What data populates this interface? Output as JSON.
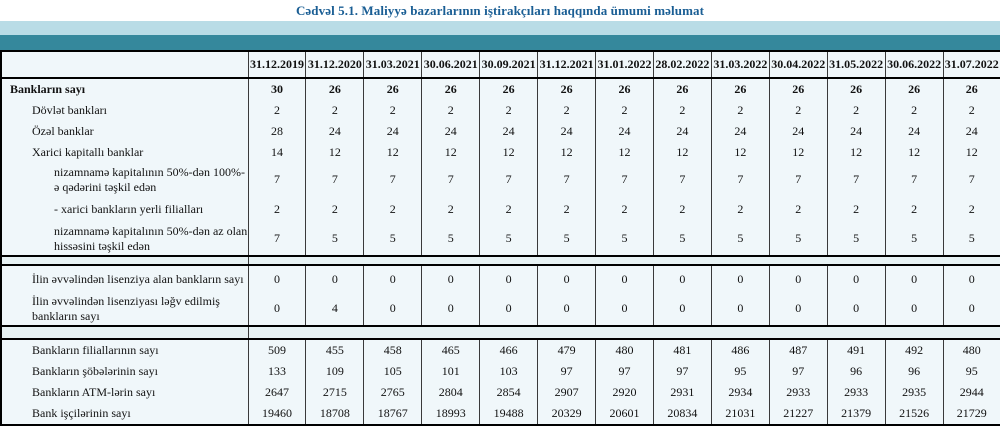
{
  "title": "Cədvəl 5.1. Maliyyə bazarlarının iştirakçıları haqqında ümumi məlumat",
  "colors": {
    "title_blue": "#1a5e94",
    "band_light": "#b9dce6",
    "band_dark": "#35889c",
    "cell_background": "#f0f7fa",
    "divider_background": "#e7f2f4"
  },
  "table": {
    "columns": [
      "31.12.2019",
      "31.12.2020",
      "31.03.2021",
      "30.06.2021",
      "30.09.2021",
      "31.12.2021",
      "31.01.2022",
      "28.02.2022",
      "31.03.2022",
      "30.04.2022",
      "31.05.2022",
      "30.06.2022",
      "31.07.2022"
    ],
    "sections": [
      {
        "rows": [
          {
            "label": "Bankların sayı",
            "indent": 0,
            "bold": true,
            "size": "s",
            "values": [
              "30",
              "26",
              "26",
              "26",
              "26",
              "26",
              "26",
              "26",
              "26",
              "26",
              "26",
              "26",
              "26"
            ]
          },
          {
            "label": "Dövlət bankları",
            "indent": 1,
            "bold": false,
            "size": "s",
            "values": [
              "2",
              "2",
              "2",
              "2",
              "2",
              "2",
              "2",
              "2",
              "2",
              "2",
              "2",
              "2",
              "2"
            ]
          },
          {
            "label": "Özəl banklar",
            "indent": 1,
            "bold": false,
            "size": "s",
            "values": [
              "28",
              "24",
              "24",
              "24",
              "24",
              "24",
              "24",
              "24",
              "24",
              "24",
              "24",
              "24",
              "24"
            ]
          },
          {
            "label": "Xarici kapitallı banklar",
            "indent": 1,
            "bold": false,
            "size": "s",
            "values": [
              "14",
              "12",
              "12",
              "12",
              "12",
              "12",
              "12",
              "12",
              "12",
              "12",
              "12",
              "12",
              "12"
            ]
          },
          {
            "label": "nizamnamə kapitalının 50%-dən 100%-ə qədərini təşkil edən",
            "indent": 2,
            "bold": false,
            "size": "d",
            "values": [
              "7",
              "7",
              "7",
              "7",
              "7",
              "7",
              "7",
              "7",
              "7",
              "7",
              "7",
              "7",
              "7"
            ]
          },
          {
            "label": "-  xarici bankların yerli filialları",
            "indent": 2,
            "bold": false,
            "size": "m",
            "values": [
              "2",
              "2",
              "2",
              "2",
              "2",
              "2",
              "2",
              "2",
              "2",
              "2",
              "2",
              "2",
              "2"
            ]
          },
          {
            "label": "nizamnamə kapitalının 50%-dən az olan hissəsini  təşkil edən",
            "indent": 2,
            "bold": false,
            "size": "d",
            "values": [
              "7",
              "5",
              "5",
              "5",
              "5",
              "5",
              "5",
              "5",
              "5",
              "5",
              "5",
              "5",
              "5"
            ]
          }
        ]
      },
      {
        "rows": [
          {
            "label": "İlin əvvəlindən lisenziya alan bankların sayı",
            "indent": 1,
            "bold": false,
            "size": "m",
            "values": [
              "0",
              "0",
              "0",
              "0",
              "0",
              "0",
              "0",
              "0",
              "0",
              "0",
              "0",
              "0",
              "0"
            ]
          },
          {
            "label": "İlin əvvəlindən lisenziyası ləğv edilmiş bankların sayı",
            "indent": 1,
            "bold": false,
            "size": "d",
            "values": [
              "0",
              "4",
              "0",
              "0",
              "0",
              "0",
              "0",
              "0",
              "0",
              "0",
              "0",
              "0",
              "0"
            ]
          }
        ]
      },
      {
        "rows": [
          {
            "label": "Bankların filiallarının sayı",
            "indent": 1,
            "bold": false,
            "size": "s",
            "values": [
              "509",
              "455",
              "458",
              "465",
              "466",
              "479",
              "480",
              "481",
              "486",
              "487",
              "491",
              "492",
              "480"
            ]
          },
          {
            "label": "Bankların şöbələrinin sayı",
            "indent": 1,
            "bold": false,
            "size": "s",
            "values": [
              "133",
              "109",
              "105",
              "101",
              "103",
              "97",
              "97",
              "97",
              "95",
              "97",
              "96",
              "96",
              "95"
            ]
          },
          {
            "label": "Bankların ATM-lərin sayı",
            "indent": 1,
            "bold": false,
            "size": "s",
            "values": [
              "2647",
              "2715",
              "2765",
              "2804",
              "2854",
              "2907",
              "2920",
              "2931",
              "2934",
              "2933",
              "2933",
              "2935",
              "2944"
            ]
          },
          {
            "label": "Bank işçilərinin sayı",
            "indent": 1,
            "bold": false,
            "size": "s",
            "values": [
              "19460",
              "18708",
              "18767",
              "18993",
              "19488",
              "20329",
              "20601",
              "20834",
              "21031",
              "21227",
              "21379",
              "21526",
              "21729"
            ]
          }
        ]
      }
    ]
  }
}
